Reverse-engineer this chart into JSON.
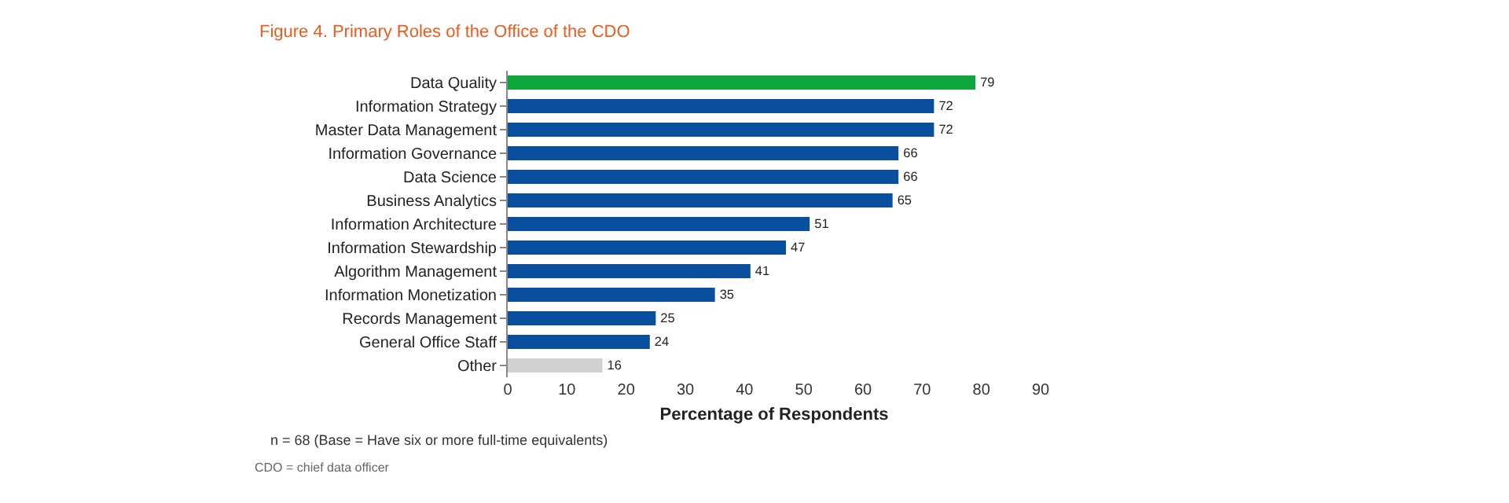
{
  "chart_data": {
    "type": "bar",
    "orientation": "horizontal",
    "title": "Figure 4. Primary Roles of the Office of the CDO",
    "categories": [
      "Data Quality",
      "Information Strategy",
      "Master Data Management",
      "Information Governance",
      "Data Science",
      "Business Analytics",
      "Information Architecture",
      "Information Stewardship",
      "Algorithm Management",
      "Information Monetization",
      "Records Management",
      "General Office Staff",
      "Other"
    ],
    "values": [
      79,
      72,
      72,
      66,
      66,
      65,
      51,
      47,
      41,
      35,
      25,
      24,
      16
    ],
    "colors": [
      "#0ea63a",
      "#0a4f9e",
      "#0a4f9e",
      "#0a4f9e",
      "#0a4f9e",
      "#0a4f9e",
      "#0a4f9e",
      "#0a4f9e",
      "#0a4f9e",
      "#0a4f9e",
      "#0a4f9e",
      "#0a4f9e",
      "#d0d0d0"
    ],
    "xlim": [
      0,
      90
    ],
    "xticks": [
      0,
      10,
      20,
      30,
      40,
      50,
      60,
      70,
      80,
      90
    ],
    "xlabel": "Percentage of Respondents",
    "data_labels": true,
    "annotations": [
      "n = 68 (Base = Have six or more full-time equivalents)",
      "CDO = chief data officer"
    ]
  }
}
